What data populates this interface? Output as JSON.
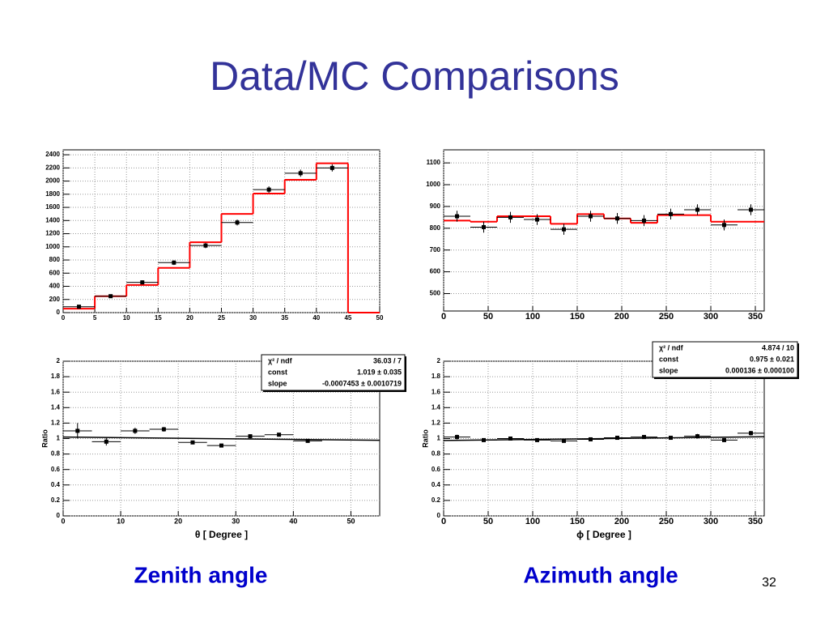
{
  "slide": {
    "title": "Data/MC Comparisons",
    "captions": [
      "Zenith angle",
      "Azimuth angle"
    ],
    "page": "32"
  },
  "chart_data": [
    {
      "type": "histogram",
      "bins": [
        0,
        5,
        10,
        15,
        20,
        25,
        30,
        35,
        40,
        45,
        50
      ],
      "series": [
        {
          "color": "#ff0000",
          "values": [
            60,
            250,
            420,
            680,
            1070,
            1500,
            1810,
            2020,
            2270,
            0
          ]
        }
      ],
      "points": {
        "color": "#000000",
        "x": [
          2.5,
          7.5,
          12.5,
          17.5,
          22.5,
          27.5,
          32.5,
          37.5,
          42.5
        ],
        "values": [
          90,
          250,
          460,
          760,
          1020,
          1370,
          1870,
          2120,
          2200
        ],
        "errors": [
          20,
          25,
          30,
          35,
          40,
          45,
          50,
          55,
          55
        ]
      },
      "xlim": [
        0,
        50
      ],
      "ylim": [
        0,
        2475
      ],
      "xticks": [
        0,
        5,
        10,
        15,
        20,
        25,
        30,
        35,
        40,
        45,
        50
      ],
      "yticks": [
        0,
        200,
        400,
        600,
        800,
        1000,
        1200,
        1400,
        1600,
        1800,
        2000,
        2200,
        2400
      ],
      "grid": true
    },
    {
      "type": "histogram",
      "bins": [
        0,
        30,
        60,
        90,
        120,
        150,
        180,
        210,
        240,
        270,
        300,
        330,
        360
      ],
      "series": [
        {
          "color": "#ff0000",
          "values": [
            835,
            830,
            855,
            855,
            820,
            865,
            845,
            825,
            860,
            860,
            830,
            830
          ]
        }
      ],
      "points": {
        "color": "#000000",
        "x": [
          15,
          45,
          75,
          105,
          135,
          165,
          195,
          225,
          255,
          285,
          315,
          345
        ],
        "values": [
          855,
          805,
          850,
          840,
          795,
          855,
          845,
          835,
          865,
          885,
          815,
          885
        ],
        "errors": [
          25,
          25,
          25,
          25,
          25,
          25,
          25,
          25,
          25,
          25,
          25,
          25
        ]
      },
      "xlim": [
        0,
        360
      ],
      "ylim": [
        420,
        1160
      ],
      "xticks": [
        0,
        50,
        100,
        150,
        200,
        250,
        300,
        350
      ],
      "yticks": [
        500,
        600,
        700,
        800,
        900,
        1000,
        1100
      ],
      "grid": true
    },
    {
      "type": "scatter",
      "xlabel": "θ [ Degree ]",
      "ylabel": "Ratio",
      "points": {
        "color": "#000000",
        "x": [
          2.5,
          7.5,
          12.5,
          17.5,
          22.5,
          27.5,
          32.5,
          37.5,
          42.5
        ],
        "values": [
          1.1,
          0.96,
          1.1,
          1.12,
          0.95,
          0.91,
          1.03,
          1.05,
          0.97
        ],
        "errors": [
          0.1,
          0.05,
          0.04,
          0.03,
          0.02,
          0.02,
          0.02,
          0.02,
          0.02
        ]
      },
      "fit": {
        "const": 1.019,
        "slope": -0.0007453
      },
      "stats": [
        [
          "χ² / ndf",
          "36.03 / 7"
        ],
        [
          "const",
          "1.019 ± 0.035"
        ],
        [
          "slope",
          "-0.0007453 ± 0.0010719"
        ]
      ],
      "xlim": [
        0,
        55
      ],
      "ylim": [
        0,
        2
      ],
      "xticks": [
        0,
        10,
        20,
        30,
        40,
        50
      ],
      "yticks": [
        0,
        0.2,
        0.4,
        0.6,
        0.8,
        1,
        1.2,
        1.4,
        1.6,
        1.8,
        2
      ],
      "grid": true
    },
    {
      "type": "scatter",
      "xlabel": "ϕ [ Degree ]",
      "ylabel": "Ratio",
      "points": {
        "color": "#000000",
        "x": [
          15,
          45,
          75,
          105,
          135,
          165,
          195,
          225,
          255,
          285,
          315,
          345
        ],
        "values": [
          1.02,
          0.98,
          1.0,
          0.98,
          0.97,
          0.99,
          1.01,
          1.02,
          1.01,
          1.03,
          0.98,
          1.07
        ],
        "errors": [
          0.03,
          0.02,
          0.02,
          0.02,
          0.02,
          0.02,
          0.02,
          0.02,
          0.02,
          0.03,
          0.02,
          0.03
        ]
      },
      "fit": {
        "const": 0.975,
        "slope": 0.000136
      },
      "stats": [
        [
          "χ² / ndf",
          "4.874 / 10"
        ],
        [
          "const",
          "0.975 ± 0.021"
        ],
        [
          "slope",
          "0.000136 ± 0.000100"
        ]
      ],
      "xlim": [
        0,
        360
      ],
      "ylim": [
        0,
        2
      ],
      "xticks": [
        0,
        50,
        100,
        150,
        200,
        250,
        300,
        350
      ],
      "yticks": [
        0,
        0.2,
        0.4,
        0.6,
        0.8,
        1,
        1.2,
        1.4,
        1.6,
        1.8,
        2
      ],
      "grid": true
    }
  ]
}
